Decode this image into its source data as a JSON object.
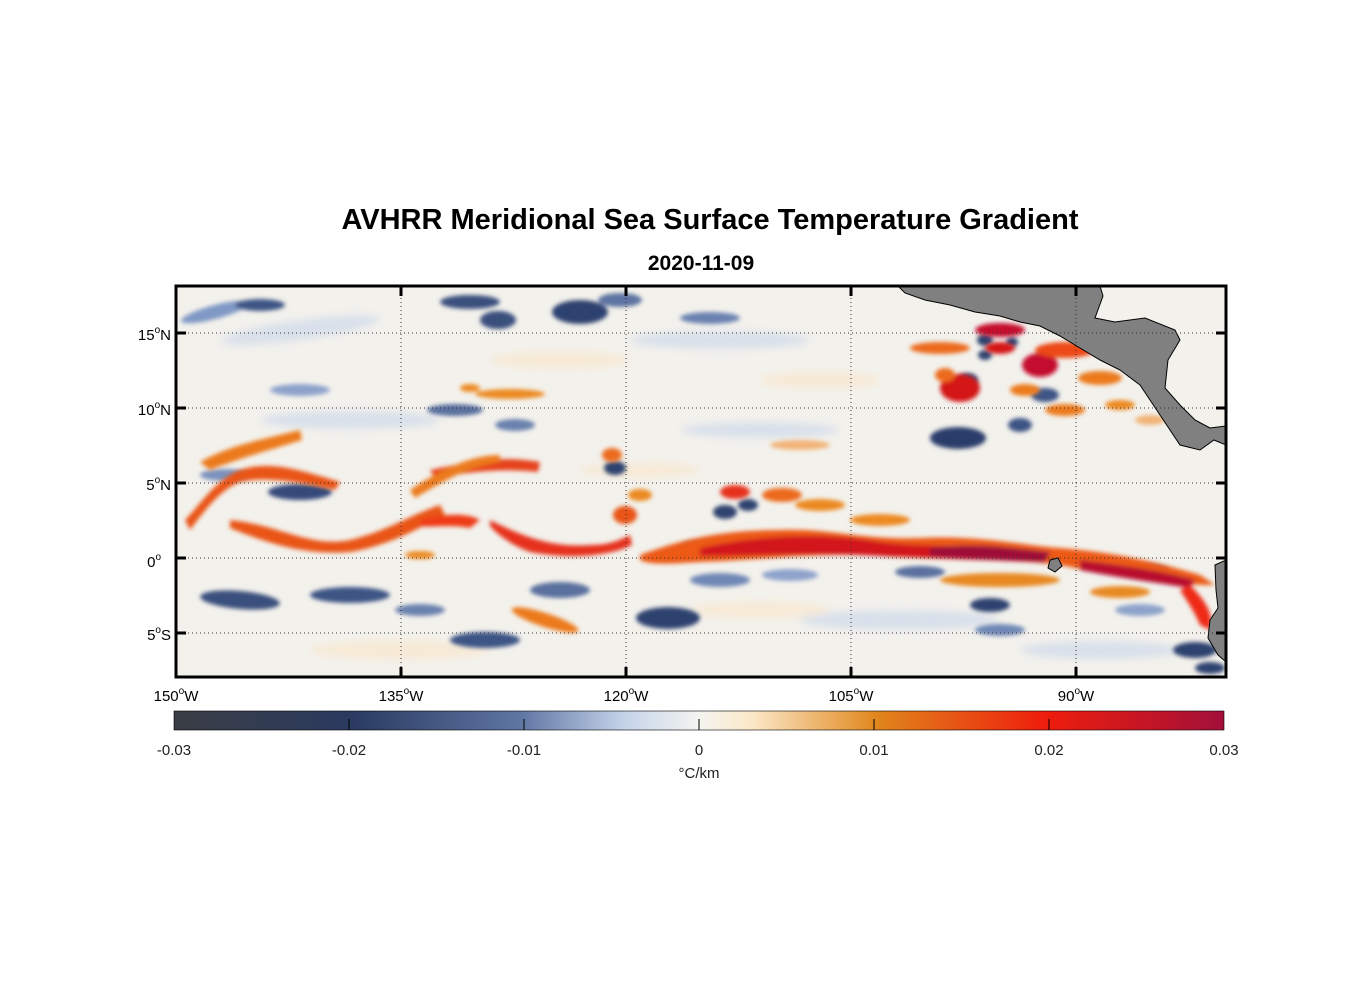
{
  "figure": {
    "title": "AVHRR Meridional Sea Surface Temperature Gradient",
    "date": "2020-11-09"
  },
  "map": {
    "lon_range": [
      -150,
      -80
    ],
    "lat_range": [
      -8,
      18
    ],
    "x_ticks": [
      {
        "lon": -150,
        "label": "150",
        "unit": "o",
        "hemi": "W"
      },
      {
        "lon": -135,
        "label": "135",
        "unit": "o",
        "hemi": "W"
      },
      {
        "lon": -120,
        "label": "120",
        "unit": "o",
        "hemi": "W"
      },
      {
        "lon": -105,
        "label": "105",
        "unit": "o",
        "hemi": "W"
      },
      {
        "lon": -90,
        "label": "90",
        "unit": "o",
        "hemi": "W"
      }
    ],
    "y_ticks": [
      {
        "lat": 15,
        "label": "15",
        "unit": "o",
        "hemi": "N"
      },
      {
        "lat": 10,
        "label": "10",
        "unit": "o",
        "hemi": "N"
      },
      {
        "lat": 5,
        "label": "5",
        "unit": "o",
        "hemi": "N"
      },
      {
        "lat": 0,
        "label": "0",
        "unit": "o",
        "hemi": ""
      },
      {
        "lat": -5,
        "label": "5",
        "unit": "o",
        "hemi": "S"
      }
    ],
    "grid": true,
    "land_color": "#808080"
  },
  "colorbar": {
    "range": [
      -0.03,
      0.03
    ],
    "ticks": [
      -0.03,
      -0.02,
      -0.01,
      0,
      0.01,
      0.02,
      0.03
    ],
    "tick_labels": [
      "-0.03",
      "-0.02",
      "-0.01",
      "0",
      "0.01",
      "0.02",
      "0.03"
    ],
    "unit_label": "°C/km",
    "colors": [
      "#3a3d44",
      "#2a3a60",
      "#8fa3c7",
      "#e6ecf5",
      "#fcefdc",
      "#e08a20",
      "#ee1d0c",
      "#a3103a"
    ]
  }
}
